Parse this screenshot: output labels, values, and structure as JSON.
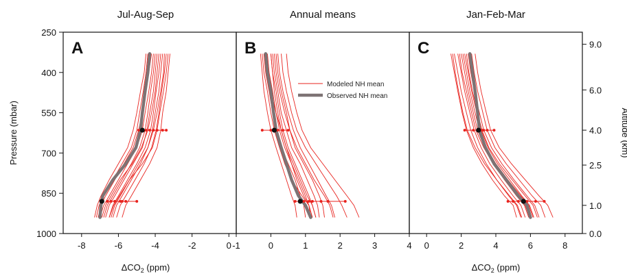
{
  "figure": {
    "left_axis": {
      "label": "Pressure (mbar)",
      "ticks": [
        250,
        400,
        550,
        700,
        850,
        1000
      ],
      "range": [
        250,
        1000
      ]
    },
    "right_axis": {
      "label": "Altitude (km)",
      "ticks": [
        {
          "label": "9.0",
          "p": 295
        },
        {
          "label": "6.0",
          "p": 465
        },
        {
          "label": "4.0",
          "p": 615
        },
        {
          "label": "2.5",
          "p": 745
        },
        {
          "label": "1.0",
          "p": 895
        },
        {
          "label": "0.0",
          "p": 1000
        }
      ]
    },
    "legend": {
      "modeled": "Modeled NH mean",
      "observed": "Observed NH mean",
      "modeled_color": "#e8231e",
      "observed_color": "#7d7374"
    }
  },
  "chart_data": [
    {
      "type": "line",
      "panel": "A",
      "title": "Jul-Aug-Sep",
      "xlabel_prefix": "ΔCO",
      "xlabel_sub": "2",
      "xlabel_suffix": " (ppm)",
      "xlim": [
        -9,
        0.4
      ],
      "x_ticks": [
        -8,
        -6,
        -4,
        -2,
        0
      ],
      "y": [
        330,
        400,
        470,
        550,
        615,
        680,
        740,
        800,
        860,
        895,
        940
      ],
      "observed": [
        -4.3,
        -4.4,
        -4.55,
        -4.7,
        -4.8,
        -5.05,
        -5.6,
        -6.3,
        -6.85,
        -6.95,
        -7.0
      ],
      "modeled": [
        [
          -3.2,
          -3.3,
          -3.4,
          -3.6,
          -3.7,
          -3.9,
          -4.3,
          -4.8,
          -5.3,
          -5.6,
          -5.8
        ],
        [
          -3.4,
          -3.5,
          -3.65,
          -3.8,
          -3.95,
          -4.2,
          -4.6,
          -5.1,
          -5.6,
          -5.9,
          -6.1
        ],
        [
          -3.6,
          -3.7,
          -3.8,
          -4.0,
          -4.15,
          -4.4,
          -4.8,
          -5.3,
          -5.8,
          -6.1,
          -6.3
        ],
        [
          -3.7,
          -3.8,
          -3.95,
          -4.1,
          -4.25,
          -4.55,
          -5.0,
          -5.5,
          -6.0,
          -6.3,
          -6.5
        ],
        [
          -3.9,
          -4.0,
          -4.1,
          -4.3,
          -4.45,
          -4.7,
          -5.2,
          -5.7,
          -6.2,
          -6.5,
          -6.7
        ],
        [
          -4.0,
          -4.1,
          -4.25,
          -4.4,
          -4.55,
          -4.85,
          -5.3,
          -5.8,
          -6.3,
          -6.6,
          -6.8
        ],
        [
          -4.1,
          -4.2,
          -4.35,
          -4.55,
          -4.7,
          -5.0,
          -5.5,
          -6.0,
          -6.5,
          -6.8,
          -7.0
        ],
        [
          -4.2,
          -4.35,
          -4.5,
          -4.7,
          -4.9,
          -5.2,
          -5.7,
          -6.2,
          -6.7,
          -6.95,
          -7.1
        ],
        [
          -4.4,
          -4.5,
          -4.65,
          -4.85,
          -5.0,
          -5.3,
          -5.8,
          -6.3,
          -6.8,
          -7.05,
          -7.2
        ],
        [
          -4.5,
          -4.6,
          -4.8,
          -5.0,
          -5.2,
          -5.5,
          -6.0,
          -6.5,
          -6.95,
          -7.15,
          -7.3
        ],
        [
          -3.5,
          -3.55,
          -3.7,
          -3.9,
          -4.1,
          -4.4,
          -4.9,
          -5.4,
          -5.9,
          -6.2,
          -6.4
        ],
        [
          -3.8,
          -3.9,
          -4.0,
          -4.2,
          -4.4,
          -4.75,
          -5.25,
          -5.9,
          -6.4,
          -6.7,
          -6.9
        ],
        [
          -3.3,
          -3.4,
          -3.55,
          -3.75,
          -3.9,
          -4.15,
          -4.7,
          -5.4,
          -5.95,
          -6.25,
          -6.5
        ]
      ],
      "observed_points": [
        {
          "x": -4.7,
          "p": 615
        },
        {
          "x": -6.9,
          "p": 880
        }
      ],
      "model_points": [
        {
          "p": 615,
          "x": [
            -4.1,
            -4.3,
            -4.5,
            -4.9,
            -3.9,
            -3.6,
            -3.4
          ]
        },
        {
          "p": 880,
          "x": [
            -6.6,
            -6.2,
            -5.9,
            -5.6,
            -5.0,
            -6.4,
            -5.8
          ]
        }
      ]
    },
    {
      "type": "line",
      "panel": "B",
      "title": "Annual means",
      "xlabel_prefix": "",
      "xlabel_sub": "",
      "xlabel_suffix": "",
      "xlim": [
        -1,
        4
      ],
      "x_ticks": [
        -1,
        0,
        1,
        2,
        3,
        4
      ],
      "y": [
        330,
        400,
        470,
        550,
        615,
        680,
        740,
        800,
        860,
        895,
        940
      ],
      "observed": [
        -0.15,
        -0.1,
        0.0,
        0.08,
        0.15,
        0.3,
        0.45,
        0.6,
        0.8,
        1.0,
        1.15
      ],
      "modeled": [
        [
          -0.3,
          -0.25,
          -0.2,
          -0.1,
          0.0,
          0.15,
          0.3,
          0.45,
          0.6,
          0.7,
          0.75
        ],
        [
          -0.2,
          -0.15,
          -0.05,
          0.05,
          0.15,
          0.3,
          0.5,
          0.7,
          0.85,
          0.95,
          1.0
        ],
        [
          -0.1,
          -0.05,
          0.05,
          0.15,
          0.25,
          0.4,
          0.6,
          0.8,
          1.0,
          1.1,
          1.15
        ],
        [
          0.0,
          0.05,
          0.15,
          0.25,
          0.35,
          0.5,
          0.7,
          0.9,
          1.1,
          1.2,
          1.3
        ],
        [
          0.05,
          0.1,
          0.2,
          0.3,
          0.45,
          0.6,
          0.85,
          1.05,
          1.25,
          1.35,
          1.4
        ],
        [
          0.1,
          0.15,
          0.25,
          0.4,
          0.55,
          0.7,
          0.95,
          1.2,
          1.4,
          1.5,
          1.55
        ],
        [
          0.2,
          0.25,
          0.35,
          0.5,
          0.65,
          0.85,
          1.1,
          1.35,
          1.6,
          1.75,
          1.85
        ],
        [
          0.3,
          0.35,
          0.45,
          0.6,
          0.75,
          1.0,
          1.3,
          1.6,
          1.9,
          2.05,
          2.2
        ],
        [
          0.45,
          0.5,
          0.6,
          0.75,
          0.9,
          1.15,
          1.5,
          1.85,
          2.2,
          2.4,
          2.55
        ],
        [
          -0.25,
          -0.2,
          -0.1,
          0.0,
          0.1,
          0.25,
          0.4,
          0.6,
          0.9,
          1.1,
          1.2
        ],
        [
          0.0,
          0.05,
          0.1,
          0.2,
          0.3,
          0.45,
          0.65,
          0.85,
          1.05,
          1.2,
          1.3
        ],
        [
          -0.15,
          -0.1,
          0.0,
          0.15,
          0.3,
          0.45,
          0.6,
          0.75,
          0.95,
          1.1,
          1.2
        ],
        [
          0.15,
          0.2,
          0.3,
          0.45,
          0.55,
          0.75,
          1.0,
          1.25,
          1.55,
          1.7,
          1.8
        ]
      ],
      "observed_points": [
        {
          "x": 0.1,
          "p": 615
        },
        {
          "x": 0.85,
          "p": 880
        }
      ],
      "model_points": [
        {
          "p": 615,
          "x": [
            -0.25,
            0.2,
            0.35,
            0.5,
            0.0,
            0.15
          ]
        },
        {
          "p": 880,
          "x": [
            0.7,
            1.1,
            1.2,
            1.45,
            1.65,
            2.15,
            0.95
          ]
        }
      ]
    },
    {
      "type": "line",
      "panel": "C",
      "title": "Jan-Feb-Mar",
      "xlabel_prefix": "ΔCO",
      "xlabel_sub": "2",
      "xlabel_suffix": " (ppm)",
      "xlim": [
        -1,
        9
      ],
      "x_ticks": [
        0,
        2,
        4,
        6,
        8
      ],
      "y": [
        330,
        400,
        470,
        550,
        615,
        680,
        740,
        800,
        860,
        895,
        940
      ],
      "observed": [
        2.5,
        2.65,
        2.8,
        2.95,
        3.05,
        3.4,
        3.9,
        4.6,
        5.3,
        5.8,
        6.0
      ],
      "modeled": [
        [
          1.4,
          1.6,
          1.8,
          2.05,
          2.3,
          2.7,
          3.2,
          3.8,
          4.5,
          5.0,
          5.2
        ],
        [
          1.6,
          1.8,
          2.0,
          2.3,
          2.55,
          2.95,
          3.45,
          4.05,
          4.75,
          5.2,
          5.45
        ],
        [
          1.8,
          2.0,
          2.2,
          2.5,
          2.75,
          3.15,
          3.65,
          4.3,
          5.0,
          5.45,
          5.7
        ],
        [
          2.0,
          2.2,
          2.4,
          2.7,
          2.95,
          3.35,
          3.9,
          4.55,
          5.25,
          5.7,
          5.95
        ],
        [
          2.2,
          2.4,
          2.6,
          2.9,
          3.15,
          3.55,
          4.1,
          4.8,
          5.5,
          5.95,
          6.2
        ],
        [
          2.4,
          2.55,
          2.75,
          3.05,
          3.3,
          3.75,
          4.35,
          5.05,
          5.8,
          6.25,
          6.5
        ],
        [
          2.6,
          2.75,
          2.95,
          3.25,
          3.5,
          3.95,
          4.6,
          5.35,
          6.1,
          6.6,
          6.85
        ],
        [
          2.8,
          2.95,
          3.15,
          3.45,
          3.7,
          4.2,
          4.9,
          5.7,
          6.5,
          7.0,
          7.3
        ],
        [
          1.5,
          1.65,
          1.85,
          2.1,
          2.35,
          2.8,
          3.35,
          4.05,
          4.8,
          5.25,
          5.5
        ],
        [
          2.1,
          2.3,
          2.5,
          2.8,
          3.05,
          3.45,
          4.0,
          4.7,
          5.45,
          5.9,
          6.15
        ],
        [
          1.9,
          2.05,
          2.3,
          2.6,
          2.85,
          3.3,
          3.85,
          4.5,
          5.2,
          5.65,
          5.9
        ],
        [
          2.3,
          2.45,
          2.65,
          2.95,
          3.2,
          3.6,
          4.2,
          4.95,
          5.7,
          6.15,
          6.4
        ]
      ],
      "observed_points": [
        {
          "x": 3.0,
          "p": 615
        },
        {
          "x": 5.6,
          "p": 880
        }
      ],
      "model_points": [
        {
          "p": 615,
          "x": [
            2.2,
            2.7,
            3.2,
            3.5,
            3.9,
            3.3
          ]
        },
        {
          "p": 880,
          "x": [
            4.7,
            5.0,
            5.3,
            6.3,
            6.8,
            5.8
          ]
        }
      ]
    }
  ]
}
